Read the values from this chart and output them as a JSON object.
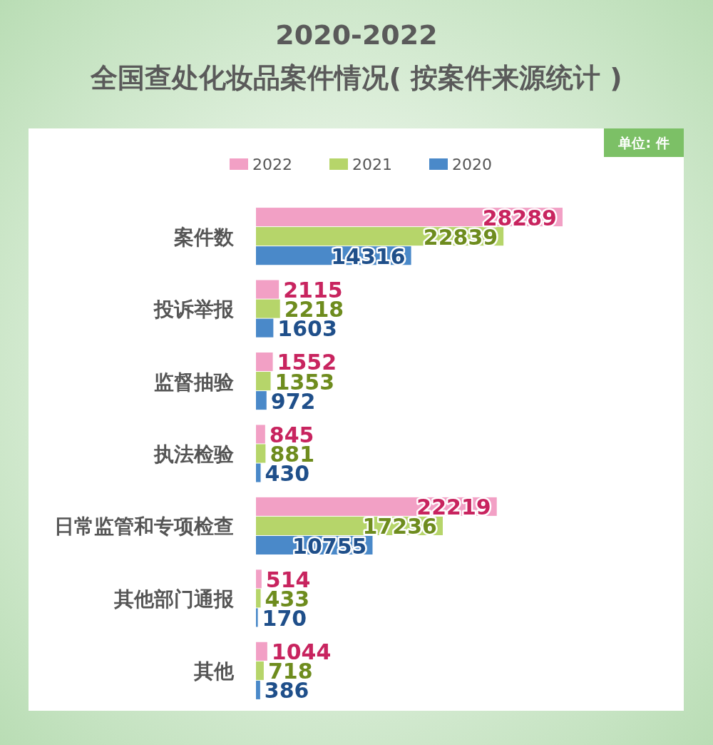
{
  "chart_data": {
    "type": "bar",
    "orientation": "horizontal",
    "title": "2020-2022",
    "subtitle": "全国查处化妆品案件情况( 按案件来源统计 )",
    "annotations": [
      "单位: 件"
    ],
    "categories": [
      "案件数",
      "投诉举报",
      "监督抽验",
      "执法检验",
      "日常监管和专项检查",
      "其他部门通报",
      "其他"
    ],
    "series": [
      {
        "name": "2022",
        "color": "#f2a0c5",
        "values": [
          28289,
          2115,
          1552,
          845,
          22219,
          514,
          1044
        ]
      },
      {
        "name": "2021",
        "color": "#b6d56a",
        "values": [
          22839,
          2218,
          1353,
          881,
          17236,
          433,
          718
        ]
      },
      {
        "name": "2020",
        "color": "#4a89c9",
        "values": [
          14316,
          1603,
          972,
          430,
          10755,
          170,
          386
        ]
      }
    ],
    "data_labels": true,
    "legend": "top"
  }
}
